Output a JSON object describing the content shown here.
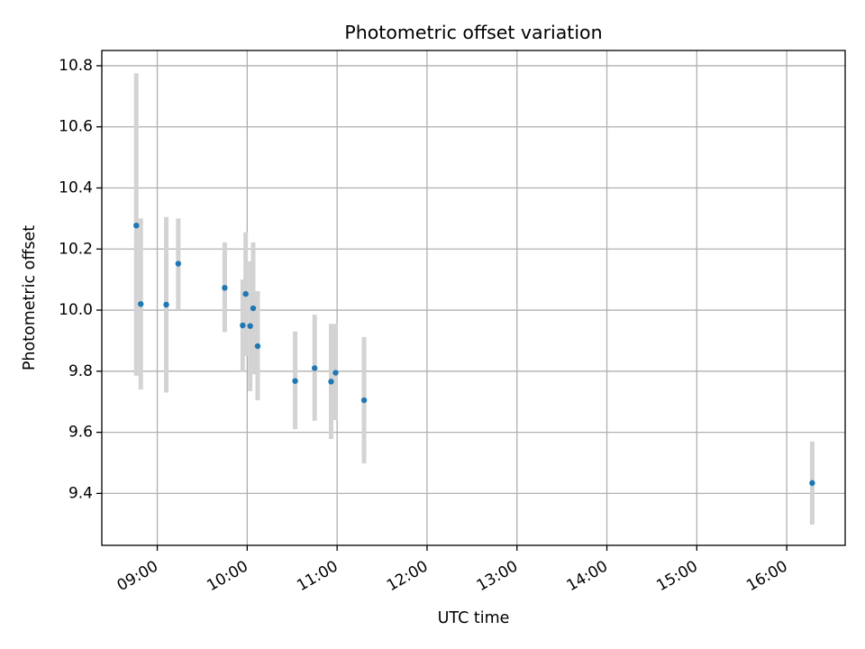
{
  "chart_data": {
    "type": "scatter",
    "title": "Photometric offset variation",
    "xlabel": "UTC time",
    "ylabel": "Photometric offset",
    "x_unit": "UTC clock time (hours, decimal)",
    "xlim": [
      "08:23",
      "16:39"
    ],
    "ylim": [
      9.23,
      10.85
    ],
    "x_ticks": [
      "09:00",
      "10:00",
      "11:00",
      "12:00",
      "13:00",
      "14:00",
      "15:00",
      "16:00"
    ],
    "y_ticks": [
      "9.4",
      "9.6",
      "9.8",
      "10.0",
      "10.2",
      "10.4",
      "10.6",
      "10.8"
    ],
    "grid": true,
    "series": [
      {
        "marker_color": "#1f77b4",
        "errorbar_color": "#d3d3d3",
        "points": [
          {
            "x": "08:46",
            "y": 10.277,
            "yerr_low": 9.785,
            "yerr_high": 10.775
          },
          {
            "x": "08:49",
            "y": 10.02,
            "yerr_low": 9.74,
            "yerr_high": 10.3
          },
          {
            "x": "09:06",
            "y": 10.018,
            "yerr_low": 9.73,
            "yerr_high": 10.305
          },
          {
            "x": "09:14",
            "y": 10.152,
            "yerr_low": 10.0,
            "yerr_high": 10.3
          },
          {
            "x": "09:45",
            "y": 10.073,
            "yerr_low": 9.928,
            "yerr_high": 10.222
          },
          {
            "x": "09:57",
            "y": 9.95,
            "yerr_low": 9.8,
            "yerr_high": 10.1
          },
          {
            "x": "09:59",
            "y": 10.053,
            "yerr_low": 9.85,
            "yerr_high": 10.255
          },
          {
            "x": "10:02",
            "y": 9.948,
            "yerr_low": 9.735,
            "yerr_high": 10.16
          },
          {
            "x": "10:04",
            "y": 10.006,
            "yerr_low": 9.79,
            "yerr_high": 10.222
          },
          {
            "x": "10:07",
            "y": 9.882,
            "yerr_low": 9.705,
            "yerr_high": 10.062
          },
          {
            "x": "10:32",
            "y": 9.768,
            "yerr_low": 9.61,
            "yerr_high": 9.93
          },
          {
            "x": "10:45",
            "y": 9.81,
            "yerr_low": 9.638,
            "yerr_high": 9.985
          },
          {
            "x": "10:56",
            "y": 9.766,
            "yerr_low": 9.578,
            "yerr_high": 9.955
          },
          {
            "x": "10:59",
            "y": 9.795,
            "yerr_low": 9.64,
            "yerr_high": 9.955
          },
          {
            "x": "11:18",
            "y": 9.705,
            "yerr_low": 9.498,
            "yerr_high": 9.912
          },
          {
            "x": "16:17",
            "y": 9.434,
            "yerr_low": 9.298,
            "yerr_high": 9.57
          }
        ]
      }
    ]
  }
}
